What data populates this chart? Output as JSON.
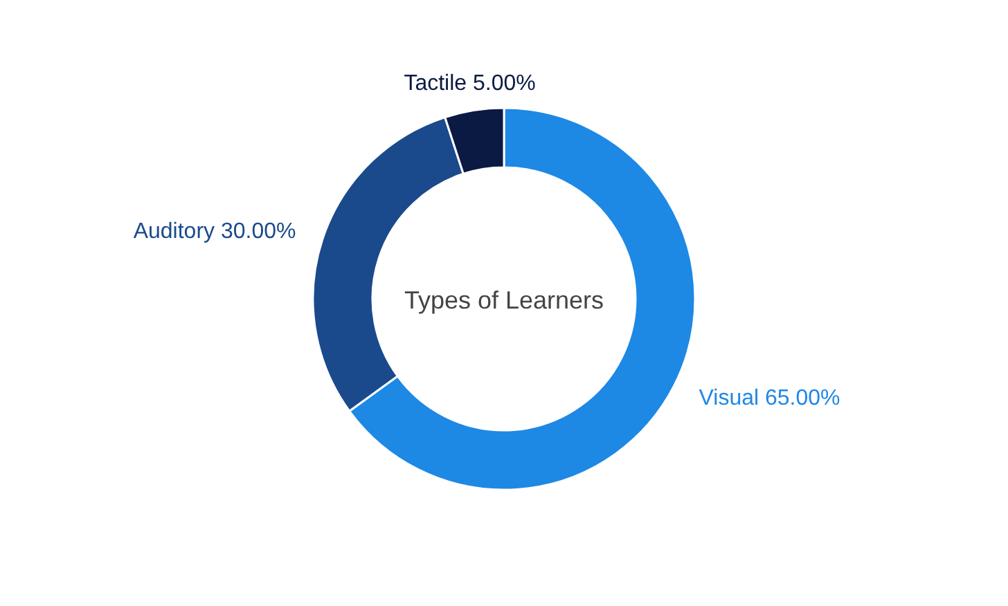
{
  "chart_data": {
    "type": "donut",
    "title": "Types of Learners",
    "categories": [
      "Visual",
      "Auditory",
      "Tactile"
    ],
    "values": [
      65,
      30,
      5
    ],
    "value_labels": [
      "65.00%",
      "30.00%",
      "5.00%"
    ],
    "colors": [
      "#1e88e5",
      "#1a4a8c",
      "#0b1a42"
    ]
  }
}
